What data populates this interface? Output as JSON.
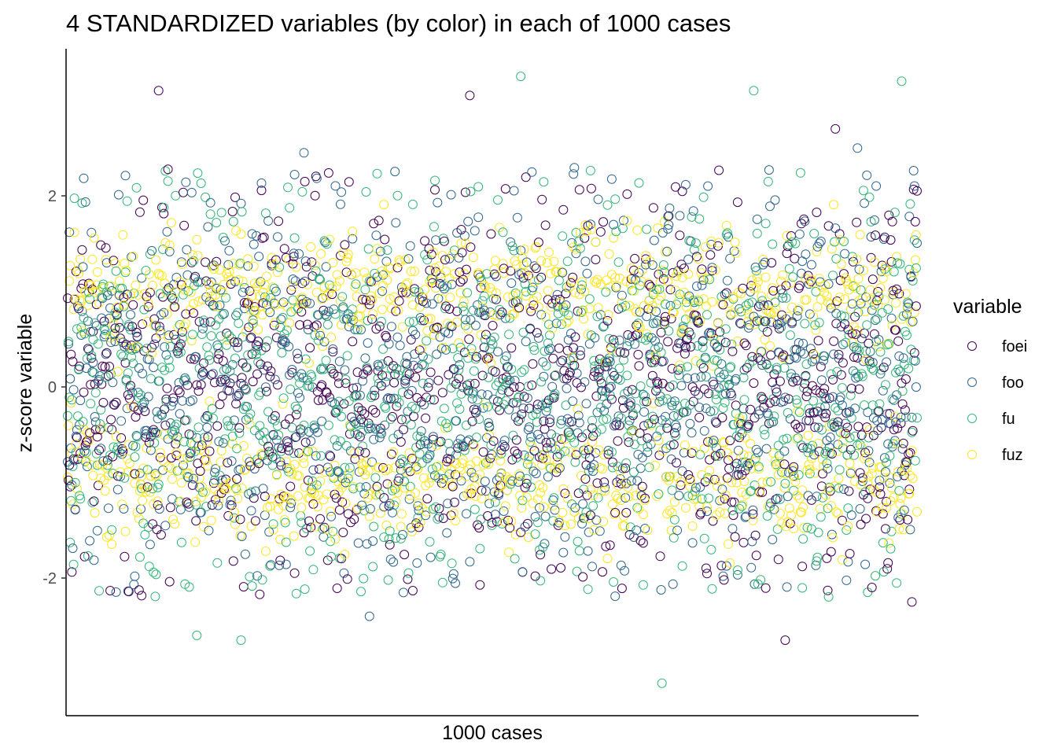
{
  "chart_data": {
    "type": "scatter",
    "title": "4 STANDARDIZED variables (by color) in each of 1000 cases",
    "xlabel": "1000 cases",
    "ylabel": "z-score variable",
    "ylim": [
      -3.4,
      3.5
    ],
    "xlim": [
      1,
      1000
    ],
    "y_ticks": [
      -2,
      0,
      2
    ],
    "y_tick_labels": [
      "-2",
      "0",
      "2"
    ],
    "x_ticks_shown": false,
    "grid": false,
    "marker": "open-circle",
    "legend": {
      "title": "variable",
      "placement": "right",
      "entries": [
        "foei",
        "foo",
        "fu",
        "fuz"
      ]
    },
    "series": [
      {
        "name": "foei",
        "color": "#440154",
        "n": 1000,
        "distribution": "standardized-normal",
        "highlights": [
          {
            "x": 108,
            "y": 3.1
          },
          {
            "x": 474,
            "y": 3.05
          },
          {
            "x": 845,
            "y": -2.65
          },
          {
            "x": 904,
            "y": 2.7
          },
          {
            "x": 994,
            "y": -2.25
          }
        ]
      },
      {
        "name": "foo",
        "color": "#31688E",
        "n": 1000,
        "distribution": "standardized-normal",
        "highlights": [
          {
            "x": 279,
            "y": 2.45
          },
          {
            "x": 356,
            "y": -2.4
          },
          {
            "x": 930,
            "y": 2.5
          }
        ]
      },
      {
        "name": "fu",
        "color": "#35B779",
        "n": 1000,
        "distribution": "standardized-normal",
        "highlights": [
          {
            "x": 534,
            "y": 3.25
          },
          {
            "x": 700,
            "y": -3.1
          },
          {
            "x": 808,
            "y": 3.1
          },
          {
            "x": 982,
            "y": 3.2
          },
          {
            "x": 205,
            "y": -2.65
          },
          {
            "x": 153,
            "y": -2.6
          }
        ]
      },
      {
        "name": "fuz",
        "color": "#FDE725",
        "n": 1000,
        "distribution": "bimodal-standardized",
        "mode_centers": [
          -1.0,
          1.0
        ],
        "highlights": []
      }
    ]
  }
}
